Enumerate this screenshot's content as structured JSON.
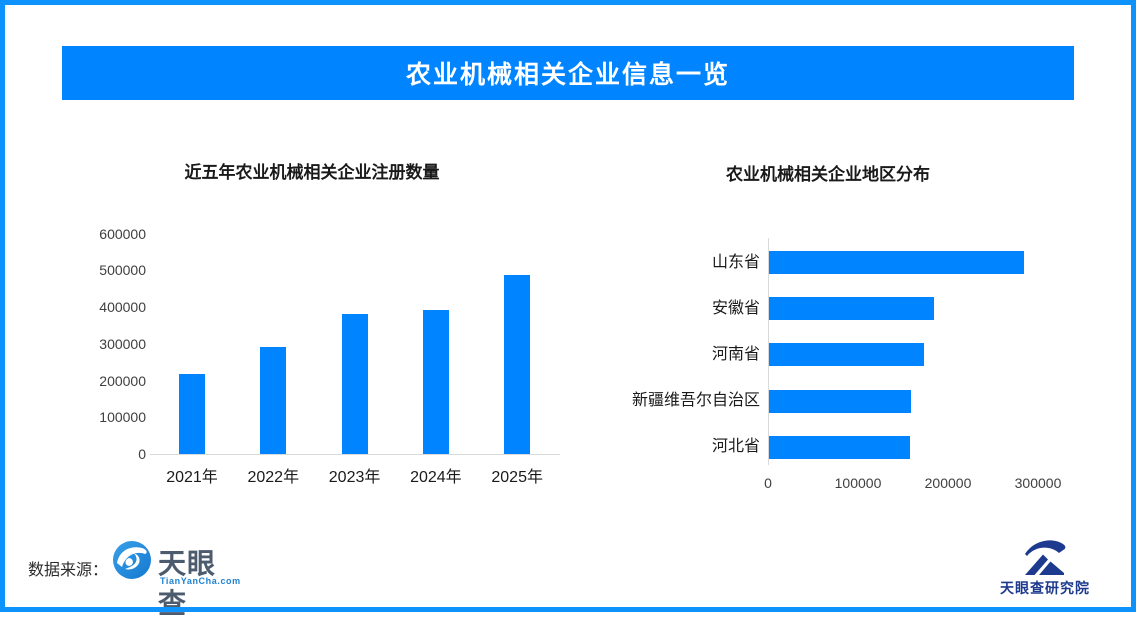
{
  "banner": {
    "title": "农业机械相关企业信息一览",
    "bg_color": "#0084ff",
    "text_color": "#ffffff"
  },
  "colors": {
    "accent_blue": "#0084ff",
    "frame_border": "#0d93fb",
    "axis_gray": "#d9d9d9",
    "tyc_slate": "#4d5b6e",
    "tyc_link_blue": "#1f83d2",
    "research_navy": "#1d3a8f"
  },
  "chart_data": [
    {
      "type": "bar",
      "orientation": "vertical",
      "title": "近五年农业机械相关企业注册数量",
      "categories": [
        "2021年",
        "2022年",
        "2023年",
        "2024年",
        "2025年"
      ],
      "values": [
        218000,
        291000,
        380000,
        391000,
        488000
      ],
      "xlabel": "",
      "ylabel": "",
      "ylim": [
        0,
        600000
      ],
      "yticks": [
        0,
        100000,
        200000,
        300000,
        400000,
        500000,
        600000
      ],
      "bar_color": "#0084ff",
      "grid": false,
      "legend": false
    },
    {
      "type": "bar",
      "orientation": "horizontal",
      "title": "农业机械相关企业地区分布",
      "categories": [
        "山东省",
        "安徽省",
        "河南省",
        "新疆维吾尔自治区",
        "河北省"
      ],
      "values": [
        283000,
        183000,
        172000,
        158000,
        157000
      ],
      "xlabel": "",
      "ylabel": "",
      "xlim": [
        0,
        330000
      ],
      "xticks": [
        0,
        100000,
        200000,
        300000
      ],
      "bar_color": "#0084ff",
      "grid": false,
      "legend": false
    }
  ],
  "footer": {
    "source_label": "数据来源：",
    "source_logo": {
      "name": "天眼查",
      "subtext": "TianYanCha.com"
    },
    "research_logo": {
      "name": "天眼查研究院"
    }
  }
}
